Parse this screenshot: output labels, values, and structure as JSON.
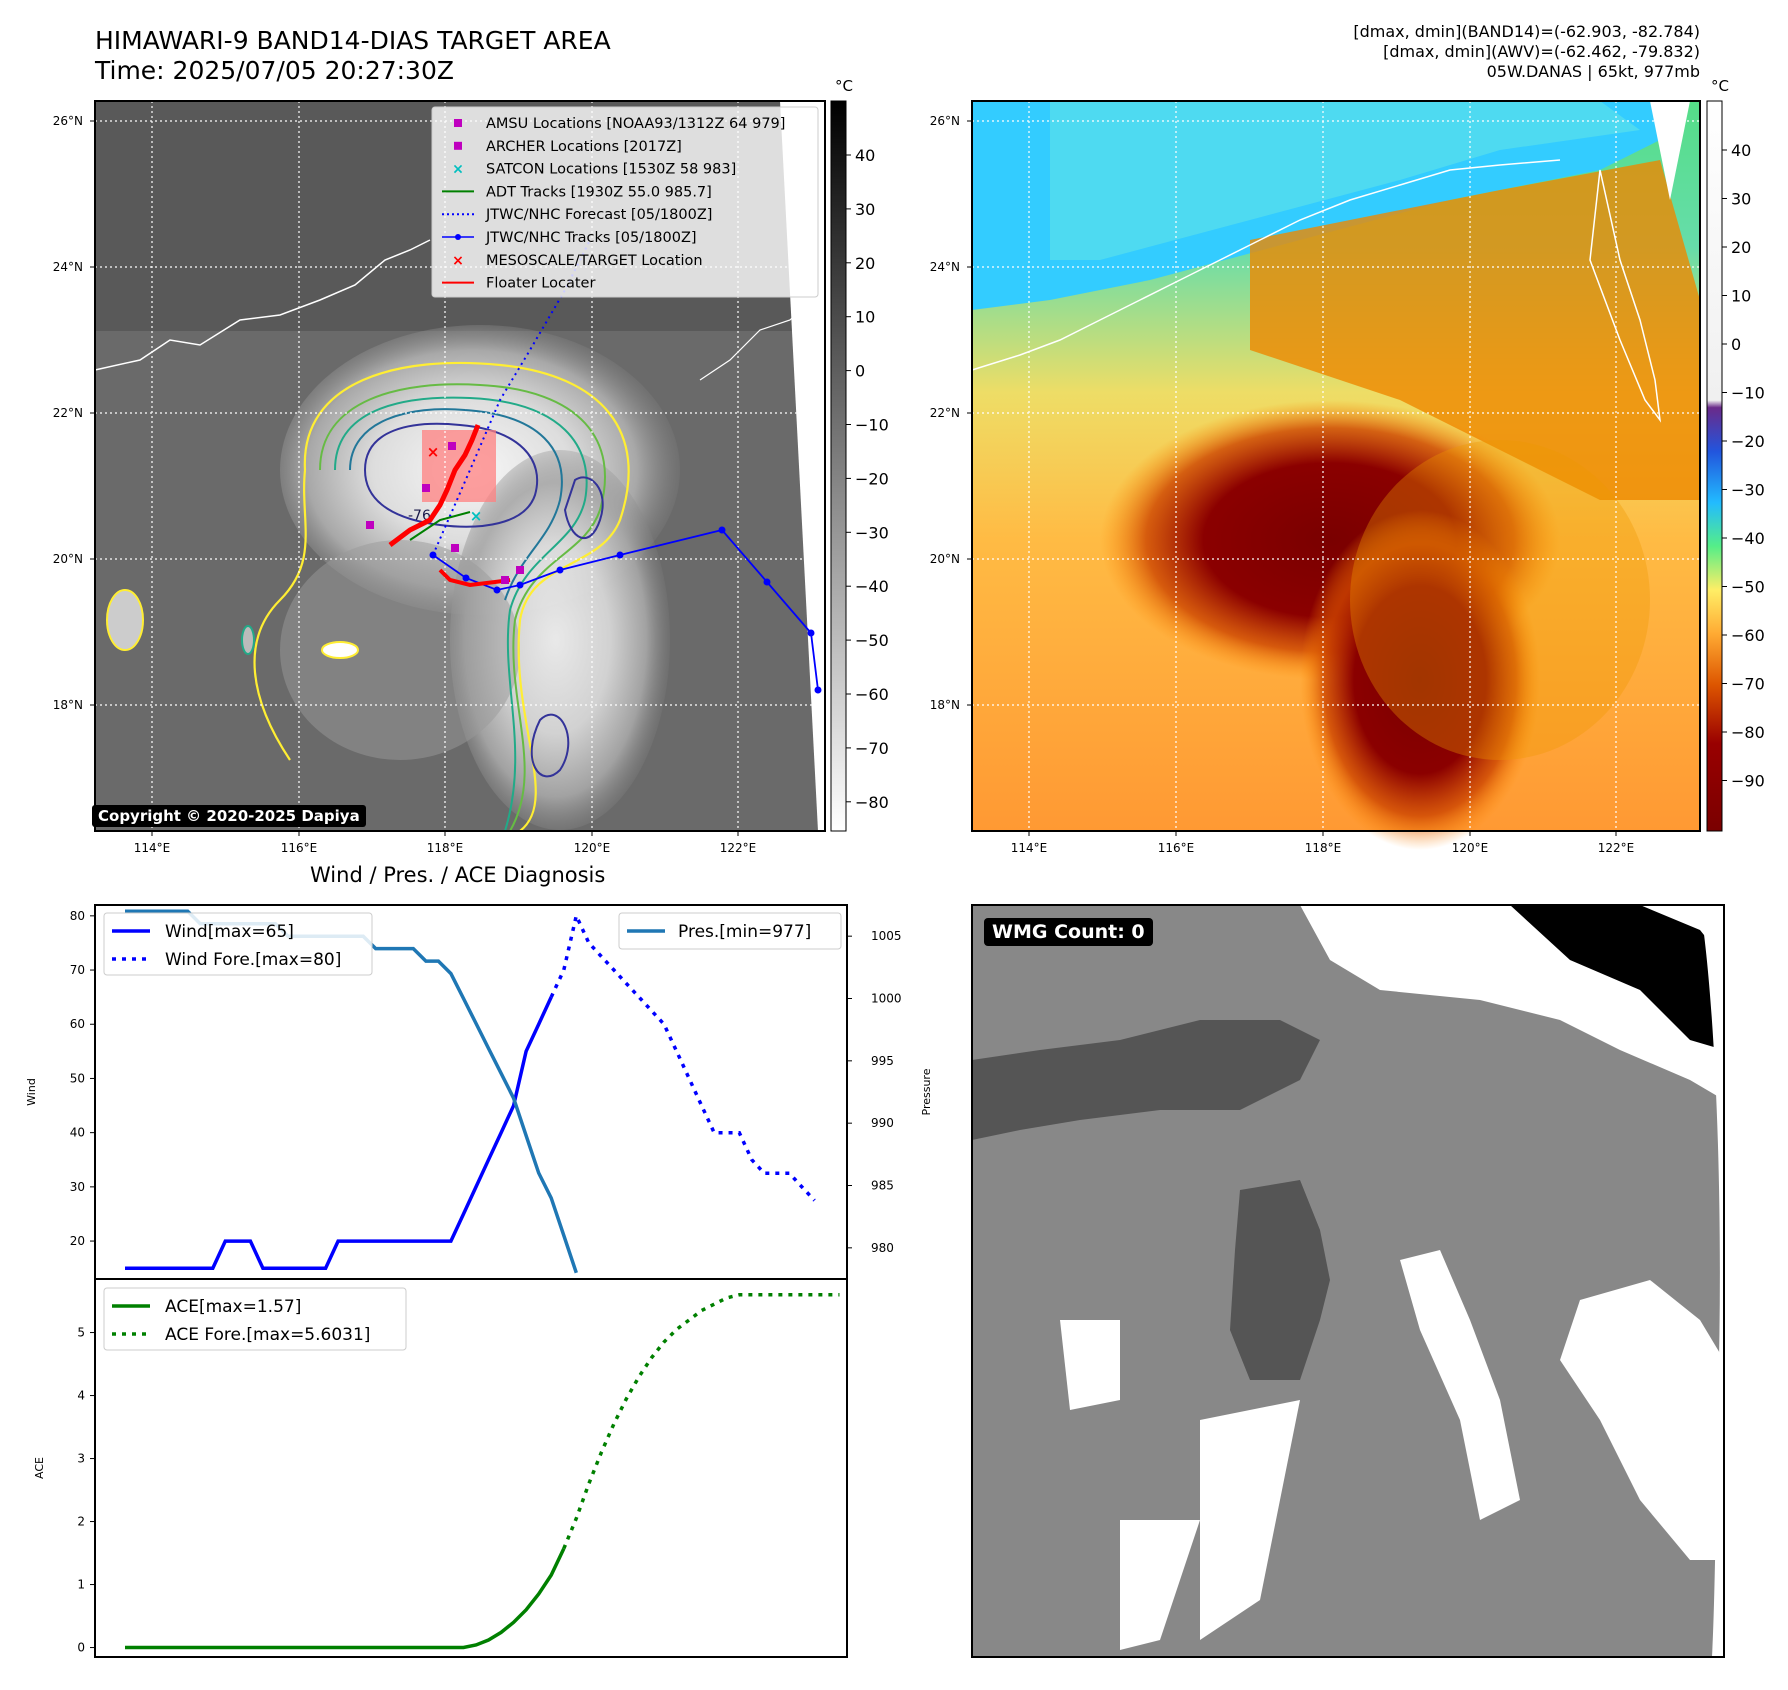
{
  "header": {
    "title": "HIMAWARI-9 BAND14-DIAS TARGET AREA",
    "time": "Time: 2025/07/05 20:27:30Z",
    "dmax_band14": "[dmax, dmin](BAND14)=(-62.903, -82.784)",
    "dmax_awv": "[dmax, dmin](AWV)=(-62.462, -79.832)",
    "storm": "05W.DANAS | 65kt, 977mb",
    "copyright": "Copyright © 2020-2025 Dapiya"
  },
  "map_axes": {
    "lon_ticks": [
      "114°E",
      "116°E",
      "118°E",
      "120°E",
      "122°E"
    ],
    "lat_ticks": [
      "26°N",
      "24°N",
      "22°N",
      "20°N",
      "18°N"
    ]
  },
  "colorbar_left": {
    "unit": "°C",
    "ticks": [
      "40",
      "30",
      "20",
      "10",
      "0",
      "−10",
      "−20",
      "−30",
      "−40",
      "−50",
      "−60",
      "−70",
      "−80"
    ]
  },
  "colorbar_right": {
    "unit": "°C",
    "ticks": [
      "40",
      "30",
      "20",
      "10",
      "0",
      "−10",
      "−20",
      "−30",
      "−40",
      "−50",
      "−60",
      "−70",
      "−80",
      "−90"
    ]
  },
  "legend_map": [
    {
      "label": "AMSU Locations [NOAA93/1312Z 64 979]",
      "marker": "square",
      "color": "#bf00bf"
    },
    {
      "label": "ARCHER Locations [2017Z]",
      "marker": "square",
      "color": "#bf00bf"
    },
    {
      "label": "SATCON Locations [1530Z 58 983]",
      "marker": "x",
      "color": "#00bfbf"
    },
    {
      "label": "ADT Tracks [1930Z 55.0 985.7]",
      "marker": "line",
      "color": "#008000"
    },
    {
      "label": "JTWC/NHC Forecast [05/1800Z]",
      "marker": "dotted",
      "color": "#0000ff"
    },
    {
      "label": "JTWC/NHC Tracks [05/1800Z]",
      "marker": "line-dot",
      "color": "#0000ff"
    },
    {
      "label": "MESOSCALE/TARGET Location",
      "marker": "x",
      "color": "#ff0000"
    },
    {
      "label": "Floater Locater",
      "marker": "line",
      "color": "#ff0000"
    }
  ],
  "contour_label": "-76",
  "diag_title": "Wind / Pres. / ACE Diagnosis",
  "wmg_count": "WMG Count: 0",
  "chart_data": [
    {
      "type": "line",
      "title": "Wind / Pres. / ACE Diagnosis",
      "ylabel": "Wind",
      "y2label": "Pressure",
      "ylim": [
        13,
        82
      ],
      "y2lim": [
        977.5,
        1007.5
      ],
      "yticks": [
        20,
        30,
        40,
        50,
        60,
        70,
        80
      ],
      "y2ticks": [
        980,
        985,
        990,
        995,
        1000,
        1005
      ],
      "series": [
        {
          "name": "Wind[max=65]",
          "style": "solid",
          "color": "#0000ff",
          "axis": "left",
          "values": [
            15,
            15,
            15,
            15,
            15,
            15,
            15,
            15,
            20,
            20,
            20,
            15,
            15,
            15,
            15,
            15,
            15,
            20,
            20,
            20,
            20,
            20,
            20,
            20,
            20,
            20,
            20,
            25,
            30,
            35,
            40,
            45,
            55,
            60,
            65
          ]
        },
        {
          "name": "Wind Fore.[max=80]",
          "style": "dotted",
          "color": "#0000ff",
          "axis": "left",
          "x_start": 34,
          "values": [
            65,
            70,
            80,
            75,
            72.5,
            70,
            67.5,
            65,
            62.5,
            60,
            55,
            50,
            45,
            40,
            40,
            40,
            35,
            32.5,
            32.5,
            32.5,
            30,
            27.5
          ]
        },
        {
          "name": "Pres.[min=977]",
          "style": "solid",
          "color": "#1f77b4",
          "axis": "right",
          "values": [
            1007,
            1007,
            1007,
            1007,
            1007,
            1007,
            1006,
            1006,
            1006,
            1006,
            1006,
            1006,
            1006,
            1005,
            1005,
            1005,
            1005,
            1005,
            1005,
            1005,
            1004,
            1004,
            1004,
            1004,
            1003,
            1003,
            1002,
            1000,
            998,
            996,
            994,
            992,
            989,
            986,
            984,
            981,
            978
          ]
        }
      ]
    },
    {
      "type": "line",
      "ylabel": "ACE",
      "ylim": [
        -0.15,
        5.85
      ],
      "yticks": [
        0,
        1,
        2,
        3,
        4,
        5
      ],
      "series": [
        {
          "name": "ACE[max=1.57]",
          "style": "solid",
          "color": "#008000",
          "values": [
            0,
            0,
            0,
            0,
            0,
            0,
            0,
            0,
            0,
            0,
            0,
            0,
            0,
            0,
            0,
            0,
            0,
            0,
            0,
            0,
            0,
            0,
            0,
            0,
            0,
            0,
            0,
            0,
            0.04,
            0.12,
            0.24,
            0.4,
            0.6,
            0.85,
            1.15,
            1.57
          ]
        },
        {
          "name": "ACE Fore.[max=5.6031]",
          "style": "dotted",
          "color": "#008000",
          "x_start": 35,
          "values": [
            1.57,
            2.05,
            2.6,
            3.1,
            3.55,
            3.95,
            4.3,
            4.6,
            4.85,
            5.05,
            5.2,
            5.35,
            5.45,
            5.55,
            5.6,
            5.6,
            5.6,
            5.6,
            5.6,
            5.6,
            5.6,
            5.6,
            5.6
          ]
        }
      ]
    }
  ]
}
